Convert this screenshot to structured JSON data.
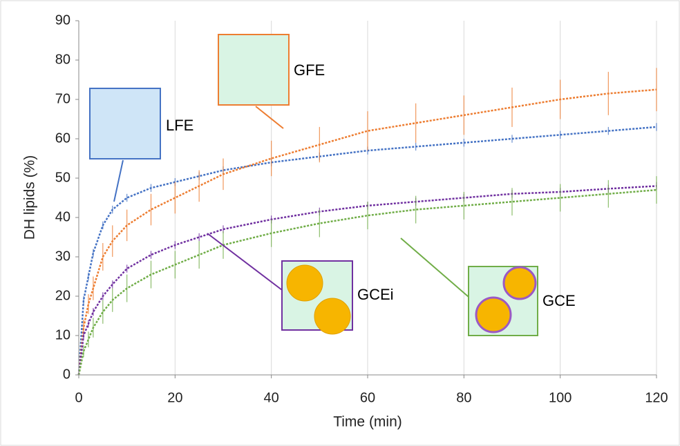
{
  "chart_data": {
    "type": "line",
    "xlabel": "Time (min)",
    "ylabel": "DH lipids (%)",
    "x": [
      0,
      1,
      2,
      3,
      5,
      7,
      10,
      15,
      20,
      25,
      30,
      40,
      50,
      60,
      70,
      80,
      90,
      100,
      110,
      120
    ],
    "xlim": [
      0,
      120
    ],
    "xticks": [
      0,
      20,
      40,
      60,
      80,
      100,
      120
    ],
    "ylim": [
      0,
      90
    ],
    "yticks": [
      0,
      10,
      20,
      30,
      40,
      50,
      60,
      70,
      80,
      90
    ],
    "grid": "x",
    "series": [
      {
        "name": "LFE",
        "color": "#4472c4",
        "values": [
          0,
          19,
          25,
          31,
          38,
          42,
          45,
          47.5,
          49,
          50.5,
          52,
          54,
          55.5,
          57,
          58,
          59,
          60,
          61,
          62,
          63
        ],
        "errors": [
          0,
          1,
          1,
          1,
          1,
          1,
          1,
          1,
          1,
          1,
          1,
          1,
          1,
          1,
          1,
          1,
          1,
          1,
          1,
          1
        ]
      },
      {
        "name": "GFE",
        "color": "#ed7d31",
        "values": [
          0,
          12,
          18,
          22,
          30,
          34,
          38,
          42,
          45,
          48,
          51,
          55,
          58.5,
          62,
          64,
          66,
          68,
          70,
          71.5,
          72.5
        ],
        "errors": [
          0,
          2,
          2.5,
          3,
          3.5,
          4,
          4,
          4,
          4,
          4,
          4,
          4.5,
          4.5,
          5,
          5,
          5,
          5,
          5,
          5.5,
          5.5
        ]
      },
      {
        "name": "GCEi",
        "color": "#7030a0",
        "values": [
          0,
          10,
          13,
          16,
          20,
          23,
          27,
          30.5,
          33,
          35,
          37,
          39.5,
          41.5,
          43,
          44,
          45,
          46,
          46.5,
          47.3,
          48
        ],
        "errors": [
          0,
          1,
          1,
          1,
          1,
          1,
          1,
          1,
          1,
          1,
          1,
          1,
          1,
          1,
          1,
          1,
          1,
          1,
          1,
          1
        ]
      },
      {
        "name": "GCE",
        "color": "#70ad47",
        "values": [
          0,
          6,
          9,
          12,
          16,
          19,
          22,
          25.5,
          28,
          30.5,
          33,
          36,
          38.5,
          40.5,
          42,
          43,
          44,
          45,
          46,
          47
        ],
        "errors": [
          0,
          1.5,
          2,
          2.5,
          3,
          3,
          3.5,
          3.5,
          3.5,
          3.5,
          3.5,
          3.5,
          3.5,
          3.5,
          3.5,
          3.5,
          3.5,
          3.5,
          3.5,
          3.5
        ]
      }
    ]
  }
}
